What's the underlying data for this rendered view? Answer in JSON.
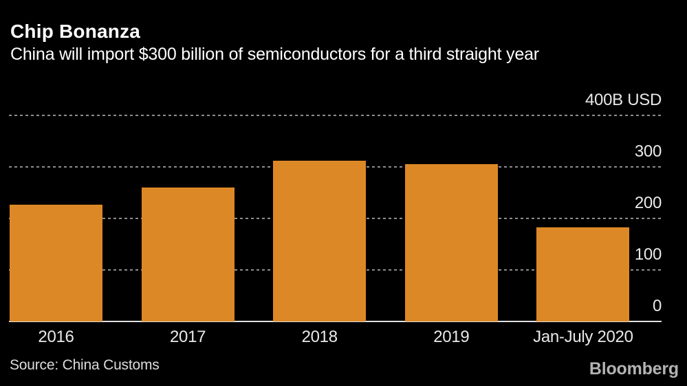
{
  "header": {
    "title": "Chip Bonanza",
    "subtitle": "China will import $300 billion of semiconductors for a third straight year"
  },
  "chart_data": {
    "type": "bar",
    "title": "Chip Bonanza",
    "subtitle": "China will import $300 billion of semiconductors for a third straight year",
    "categories": [
      "2016",
      "2017",
      "2018",
      "2019",
      "Jan-July 2020"
    ],
    "values": [
      227,
      260,
      312,
      306,
      183
    ],
    "xlabel": "",
    "ylabel": "B USD",
    "ylim": [
      0,
      400
    ],
    "y_ticks": [
      0,
      100,
      200,
      300,
      400
    ],
    "y_tick_labels": [
      "0",
      "100",
      "200",
      "300",
      "400B USD"
    ],
    "grid": "horizontal-dashed",
    "legend": "none",
    "bar_color": "#dd8826",
    "background_color": "#000000",
    "gridline_color": "#8e8e8e",
    "axis_text_color": "#e9e9e9"
  },
  "footer": {
    "source": "Source: China Customs",
    "brand": "Bloomberg"
  }
}
